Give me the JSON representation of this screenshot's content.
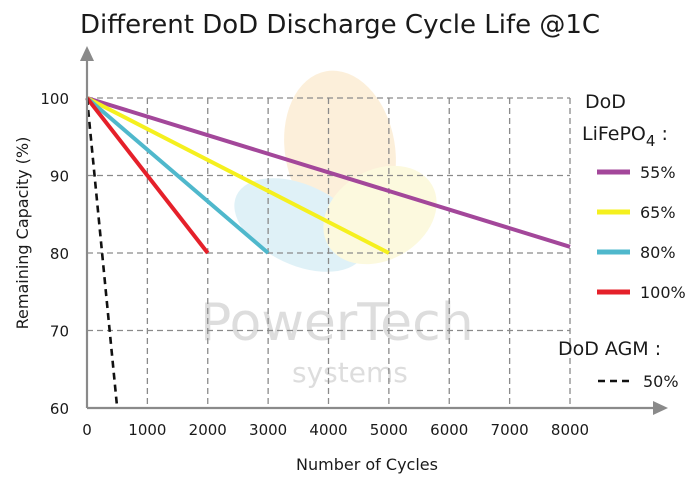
{
  "chart_data": {
    "type": "line",
    "title": "Different DoD Discharge Cycle Life @1C",
    "xlabel": "Number of Cycles",
    "ylabel": "Remaining Capacity (%)",
    "xlim": [
      0,
      8000
    ],
    "ylim": [
      60,
      100
    ],
    "x_ticks": [
      "0",
      "1000",
      "2000",
      "3000",
      "4000",
      "5000",
      "6000",
      "7000",
      "8000"
    ],
    "y_ticks": [
      "60",
      "70",
      "80",
      "90",
      "100"
    ],
    "grid": "dashed",
    "legend_position": "right",
    "series": [
      {
        "name": "55%",
        "group": "lifepo4",
        "color": "#a3479a",
        "dash": false,
        "points": [
          [
            0,
            100
          ],
          [
            8000,
            80.8
          ]
        ]
      },
      {
        "name": "65%",
        "group": "lifepo4",
        "color": "#f5f01e",
        "dash": false,
        "points": [
          [
            0,
            100
          ],
          [
            5000,
            80
          ]
        ]
      },
      {
        "name": "80%",
        "group": "lifepo4",
        "color": "#4fb8cc",
        "dash": false,
        "points": [
          [
            0,
            100
          ],
          [
            3000,
            80
          ]
        ]
      },
      {
        "name": "100%",
        "group": "lifepo4",
        "color": "#e5202a",
        "dash": false,
        "points": [
          [
            0,
            100
          ],
          [
            2000,
            80
          ]
        ]
      },
      {
        "name": "50%",
        "group": "agm",
        "color": "#111111",
        "dash": true,
        "points": [
          [
            0,
            100
          ],
          [
            500,
            60
          ]
        ]
      }
    ],
    "legend": {
      "lifepo4_heading_line1": "DoD",
      "lifepo4_heading_prefix": "LiFePO",
      "lifepo4_heading_subscript": "4",
      "lifepo4_heading_suffix": " :",
      "agm_heading": "DoD AGM :"
    }
  },
  "watermark": {
    "brand": "PowerTech",
    "sub": "systems",
    "colors": [
      "#f7c97e",
      "#8fd0e3",
      "#f6ec8a"
    ]
  }
}
